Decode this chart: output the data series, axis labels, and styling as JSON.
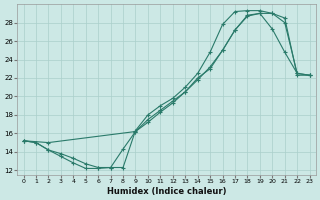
{
  "xlabel": "Humidex (Indice chaleur)",
  "bg_color": "#cce8e5",
  "line_color": "#2a7a6a",
  "grid_color": "#aacfcb",
  "xlim": [
    -0.5,
    23.5
  ],
  "ylim": [
    11.5,
    30.0
  ],
  "xticks": [
    0,
    1,
    2,
    3,
    4,
    5,
    6,
    7,
    8,
    9,
    10,
    11,
    12,
    13,
    14,
    15,
    16,
    17,
    18,
    19,
    20,
    21,
    22,
    23
  ],
  "yticks": [
    12,
    14,
    16,
    18,
    20,
    22,
    24,
    26,
    28
  ],
  "curve1_x": [
    0,
    1,
    2,
    3,
    4,
    5,
    6,
    7,
    8,
    9,
    10,
    11,
    12,
    13,
    14,
    15,
    16,
    17,
    18,
    19,
    20,
    21,
    22,
    23
  ],
  "curve1_y": [
    15.2,
    15.0,
    14.2,
    13.5,
    12.8,
    12.2,
    12.2,
    12.3,
    14.3,
    16.2,
    17.2,
    18.3,
    19.3,
    20.5,
    21.8,
    23.2,
    25.0,
    27.2,
    28.8,
    29.0,
    27.3,
    24.8,
    22.5,
    22.3
  ],
  "curve2_x": [
    0,
    1,
    2,
    3,
    4,
    5,
    6,
    7,
    8,
    9,
    10,
    11,
    12,
    13,
    14,
    15,
    16,
    17,
    18,
    19,
    20,
    21,
    22,
    23
  ],
  "curve2_y": [
    15.2,
    15.0,
    14.2,
    13.8,
    13.3,
    12.7,
    12.3,
    12.3,
    12.3,
    16.3,
    18.0,
    19.0,
    19.8,
    21.0,
    22.5,
    24.8,
    27.8,
    29.2,
    29.3,
    29.3,
    29.0,
    28.0,
    22.5,
    22.3
  ],
  "curve3_x": [
    0,
    2,
    9,
    10,
    11,
    12,
    13,
    14,
    15,
    16,
    17,
    18,
    19,
    20,
    21,
    22,
    23
  ],
  "curve3_y": [
    15.2,
    15.0,
    16.2,
    17.5,
    18.5,
    19.5,
    20.5,
    22.0,
    23.0,
    25.0,
    27.2,
    28.7,
    29.0,
    29.0,
    28.5,
    22.3,
    22.3
  ]
}
